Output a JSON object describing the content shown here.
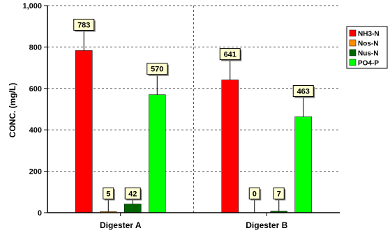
{
  "chart_data": {
    "type": "bar",
    "title": "",
    "xlabel": "",
    "ylabel": "CONC. (mg/L)",
    "ylim": [
      0,
      1000
    ],
    "yticks": [
      "0",
      "200",
      "400",
      "600",
      "800",
      "1,000"
    ],
    "categories": [
      "Digester A",
      "Digester B"
    ],
    "grid": true,
    "legend": "top-right",
    "series": [
      {
        "name": "NH3-N",
        "color": "#ff0000",
        "values": [
          783,
          641
        ],
        "labels": [
          "783",
          "641"
        ]
      },
      {
        "name": "Nos-N",
        "color": "#ff8c00",
        "values": [
          5,
          0
        ],
        "labels": [
          "5",
          "0"
        ]
      },
      {
        "name": "Nus-N",
        "color": "#006400",
        "values": [
          42,
          7
        ],
        "labels": [
          "42",
          "7"
        ]
      },
      {
        "name": "PO4-P",
        "color": "#00ff00",
        "values": [
          570,
          463
        ],
        "labels": [
          "570",
          "463"
        ]
      }
    ]
  }
}
